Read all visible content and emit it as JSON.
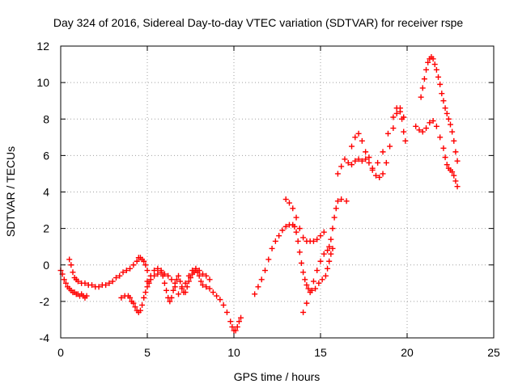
{
  "chart_data": {
    "type": "scatter",
    "title": "Day 324 of 2016, Sidereal Day-to-day VTEC variation (SDTVAR) for receiver rspe",
    "xlabel": "GPS time / hours",
    "ylabel": "SDTVAR / TECUs",
    "xlim": [
      0,
      25
    ],
    "ylim": [
      -4,
      12
    ],
    "xticks": [
      0,
      5,
      10,
      15,
      20,
      25
    ],
    "yticks": [
      -4,
      -2,
      0,
      2,
      4,
      6,
      8,
      10,
      12
    ],
    "grid": true,
    "marker": "plus",
    "color": "#ff0000",
    "series": [
      {
        "points": [
          [
            0.0,
            -0.3
          ],
          [
            0.1,
            -0.5
          ],
          [
            0.2,
            -0.8
          ],
          [
            0.3,
            -1.0
          ],
          [
            0.4,
            -1.2
          ],
          [
            0.5,
            -1.3
          ],
          [
            0.6,
            -1.4
          ],
          [
            0.7,
            -1.5
          ],
          [
            0.8,
            -1.5
          ],
          [
            0.9,
            -1.6
          ],
          [
            1.0,
            -1.6
          ],
          [
            1.1,
            -1.7
          ],
          [
            1.2,
            -1.6
          ],
          [
            1.3,
            -1.7
          ],
          [
            1.4,
            -1.8
          ],
          [
            1.5,
            -1.7
          ],
          [
            0.5,
            0.3
          ],
          [
            0.6,
            0.0
          ],
          [
            0.7,
            -0.4
          ],
          [
            0.8,
            -0.7
          ],
          [
            0.9,
            -0.8
          ],
          [
            1.0,
            -0.9
          ],
          [
            1.2,
            -1.0
          ],
          [
            1.4,
            -1.0
          ],
          [
            1.6,
            -1.1
          ],
          [
            1.8,
            -1.1
          ],
          [
            2.0,
            -1.2
          ],
          [
            2.2,
            -1.2
          ],
          [
            2.4,
            -1.1
          ],
          [
            2.6,
            -1.1
          ],
          [
            2.8,
            -1.0
          ],
          [
            3.0,
            -0.9
          ],
          [
            3.2,
            -0.7
          ],
          [
            3.4,
            -0.6
          ],
          [
            3.6,
            -0.4
          ],
          [
            3.8,
            -0.3
          ],
          [
            4.0,
            -0.2
          ],
          [
            4.2,
            0.0
          ],
          [
            4.4,
            0.2
          ],
          [
            4.5,
            0.4
          ],
          [
            4.6,
            0.4
          ],
          [
            4.7,
            0.3
          ],
          [
            4.8,
            0.2
          ],
          [
            4.9,
            0.0
          ],
          [
            5.0,
            -0.3
          ],
          [
            3.5,
            -1.8
          ],
          [
            3.7,
            -1.7
          ],
          [
            3.9,
            -1.7
          ],
          [
            4.0,
            -1.8
          ],
          [
            4.1,
            -2.0
          ],
          [
            4.2,
            -2.1
          ],
          [
            4.3,
            -2.3
          ],
          [
            4.4,
            -2.5
          ],
          [
            4.5,
            -2.6
          ],
          [
            4.6,
            -2.5
          ],
          [
            4.7,
            -2.2
          ],
          [
            4.8,
            -1.8
          ],
          [
            4.9,
            -1.5
          ],
          [
            5.0,
            -1.2
          ],
          [
            5.1,
            -1.0
          ],
          [
            5.2,
            -0.8
          ],
          [
            5.4,
            -0.6
          ],
          [
            5.6,
            -0.5
          ],
          [
            5.8,
            -0.4
          ],
          [
            5.9,
            -0.6
          ],
          [
            6.0,
            -1.0
          ],
          [
            6.1,
            -1.4
          ],
          [
            6.2,
            -1.8
          ],
          [
            6.3,
            -2.0
          ],
          [
            6.4,
            -1.8
          ],
          [
            6.5,
            -1.4
          ],
          [
            6.6,
            -1.0
          ],
          [
            6.7,
            -0.8
          ],
          [
            6.8,
            -0.6
          ],
          [
            6.9,
            -0.9
          ],
          [
            7.0,
            -1.2
          ],
          [
            7.1,
            -1.5
          ],
          [
            7.2,
            -1.5
          ],
          [
            7.3,
            -1.2
          ],
          [
            7.4,
            -0.9
          ],
          [
            7.5,
            -0.7
          ],
          [
            7.6,
            -0.5
          ],
          [
            7.7,
            -0.4
          ],
          [
            7.8,
            -0.3
          ],
          [
            7.9,
            -0.4
          ],
          [
            8.0,
            -0.6
          ],
          [
            8.1,
            -0.9
          ],
          [
            8.2,
            -1.1
          ],
          [
            8.4,
            -1.2
          ],
          [
            8.6,
            -1.3
          ],
          [
            8.8,
            -1.5
          ],
          [
            9.0,
            -1.7
          ],
          [
            9.2,
            -1.9
          ],
          [
            9.4,
            -2.2
          ],
          [
            9.6,
            -2.6
          ],
          [
            9.8,
            -3.1
          ],
          [
            9.9,
            -3.4
          ],
          [
            10.0,
            -3.6
          ],
          [
            10.1,
            -3.6
          ],
          [
            10.2,
            -3.4
          ],
          [
            10.3,
            -3.1
          ],
          [
            10.4,
            -2.9
          ],
          [
            5.0,
            -0.9
          ],
          [
            5.2,
            -0.6
          ],
          [
            5.4,
            -0.3
          ],
          [
            5.6,
            -0.2
          ],
          [
            5.8,
            -0.3
          ],
          [
            6.0,
            -0.5
          ],
          [
            6.2,
            -0.6
          ],
          [
            6.4,
            -0.8
          ],
          [
            6.6,
            -1.2
          ],
          [
            6.8,
            -1.6
          ],
          [
            7.0,
            -1.3
          ],
          [
            7.2,
            -1.0
          ],
          [
            7.4,
            -0.6
          ],
          [
            7.6,
            -0.3
          ],
          [
            7.8,
            -0.2
          ],
          [
            8.0,
            -0.3
          ],
          [
            8.2,
            -0.5
          ],
          [
            8.4,
            -0.6
          ],
          [
            8.6,
            -0.8
          ],
          [
            11.2,
            -1.6
          ],
          [
            11.4,
            -1.2
          ],
          [
            11.6,
            -0.8
          ],
          [
            11.8,
            -0.3
          ],
          [
            12.0,
            0.3
          ],
          [
            12.2,
            0.9
          ],
          [
            12.4,
            1.3
          ],
          [
            12.6,
            1.6
          ],
          [
            12.8,
            1.9
          ],
          [
            13.0,
            2.1
          ],
          [
            13.2,
            2.2
          ],
          [
            13.4,
            2.2
          ],
          [
            13.5,
            2.1
          ],
          [
            13.6,
            1.8
          ],
          [
            13.7,
            1.3
          ],
          [
            13.8,
            0.7
          ],
          [
            13.9,
            0.1
          ],
          [
            14.0,
            -0.4
          ],
          [
            14.1,
            -0.8
          ],
          [
            14.2,
            -1.1
          ],
          [
            14.3,
            -1.3
          ],
          [
            14.5,
            -1.4
          ],
          [
            14.7,
            -1.3
          ],
          [
            14.9,
            -1.0
          ],
          [
            15.1,
            -0.8
          ],
          [
            15.3,
            -0.6
          ],
          [
            15.4,
            -0.2
          ],
          [
            15.5,
            0.2
          ],
          [
            15.6,
            0.6
          ],
          [
            15.7,
            0.9
          ],
          [
            13.0,
            3.6
          ],
          [
            13.2,
            3.4
          ],
          [
            13.4,
            3.1
          ],
          [
            13.6,
            2.6
          ],
          [
            13.8,
            2.0
          ],
          [
            14.0,
            1.5
          ],
          [
            14.2,
            1.3
          ],
          [
            14.4,
            1.3
          ],
          [
            14.6,
            1.3
          ],
          [
            14.8,
            1.4
          ],
          [
            15.0,
            1.6
          ],
          [
            15.2,
            1.8
          ],
          [
            14.0,
            -2.6
          ],
          [
            14.2,
            -2.1
          ],
          [
            14.4,
            -1.5
          ],
          [
            14.6,
            -0.9
          ],
          [
            14.8,
            -0.3
          ],
          [
            15.0,
            0.2
          ],
          [
            15.2,
            0.6
          ],
          [
            15.4,
            0.8
          ],
          [
            15.5,
            1.0
          ],
          [
            15.6,
            1.4
          ],
          [
            15.7,
            2.0
          ],
          [
            15.8,
            2.6
          ],
          [
            15.9,
            3.1
          ],
          [
            16.0,
            3.5
          ],
          [
            16.2,
            3.6
          ],
          [
            16.5,
            3.5
          ],
          [
            16.0,
            5.0
          ],
          [
            16.2,
            5.4
          ],
          [
            16.4,
            5.8
          ],
          [
            16.6,
            5.6
          ],
          [
            16.8,
            5.5
          ],
          [
            17.0,
            5.7
          ],
          [
            17.2,
            5.8
          ],
          [
            17.4,
            5.7
          ],
          [
            17.6,
            5.8
          ],
          [
            17.8,
            5.9
          ],
          [
            18.0,
            5.3
          ],
          [
            18.2,
            4.9
          ],
          [
            18.4,
            4.8
          ],
          [
            18.6,
            5.0
          ],
          [
            18.8,
            5.6
          ],
          [
            19.0,
            6.5
          ],
          [
            19.2,
            7.5
          ],
          [
            19.4,
            8.3
          ],
          [
            19.6,
            8.4
          ],
          [
            19.7,
            8.0
          ],
          [
            19.8,
            7.3
          ],
          [
            19.9,
            6.8
          ],
          [
            16.8,
            6.5
          ],
          [
            17.0,
            7.0
          ],
          [
            17.2,
            7.2
          ],
          [
            17.4,
            6.8
          ],
          [
            17.6,
            6.2
          ],
          [
            17.8,
            5.6
          ],
          [
            18.0,
            5.2
          ],
          [
            18.3,
            5.6
          ],
          [
            18.6,
            6.2
          ],
          [
            18.9,
            7.2
          ],
          [
            19.2,
            8.1
          ],
          [
            19.4,
            8.6
          ],
          [
            19.6,
            8.6
          ],
          [
            19.8,
            8.1
          ],
          [
            20.5,
            7.6
          ],
          [
            20.7,
            7.4
          ],
          [
            20.9,
            7.3
          ],
          [
            21.1,
            7.5
          ],
          [
            21.3,
            7.8
          ],
          [
            21.5,
            7.9
          ],
          [
            21.7,
            7.6
          ],
          [
            21.9,
            7.0
          ],
          [
            22.1,
            6.4
          ],
          [
            22.2,
            5.9
          ],
          [
            22.3,
            5.5
          ],
          [
            22.4,
            5.3
          ],
          [
            22.5,
            5.2
          ],
          [
            22.6,
            5.1
          ],
          [
            22.7,
            4.9
          ],
          [
            22.8,
            4.6
          ],
          [
            22.9,
            4.3
          ],
          [
            20.8,
            9.2
          ],
          [
            20.9,
            9.7
          ],
          [
            21.0,
            10.2
          ],
          [
            21.1,
            10.7
          ],
          [
            21.2,
            11.1
          ],
          [
            21.3,
            11.3
          ],
          [
            21.4,
            11.4
          ],
          [
            21.5,
            11.3
          ],
          [
            21.6,
            11.0
          ],
          [
            21.7,
            10.7
          ],
          [
            21.8,
            10.3
          ],
          [
            21.9,
            9.9
          ],
          [
            22.0,
            9.4
          ],
          [
            22.1,
            9.0
          ],
          [
            22.2,
            8.6
          ],
          [
            22.3,
            8.3
          ],
          [
            22.4,
            8.0
          ],
          [
            22.5,
            7.7
          ],
          [
            22.6,
            7.3
          ],
          [
            22.7,
            6.8
          ],
          [
            22.8,
            6.2
          ],
          [
            22.9,
            5.7
          ]
        ]
      }
    ]
  }
}
